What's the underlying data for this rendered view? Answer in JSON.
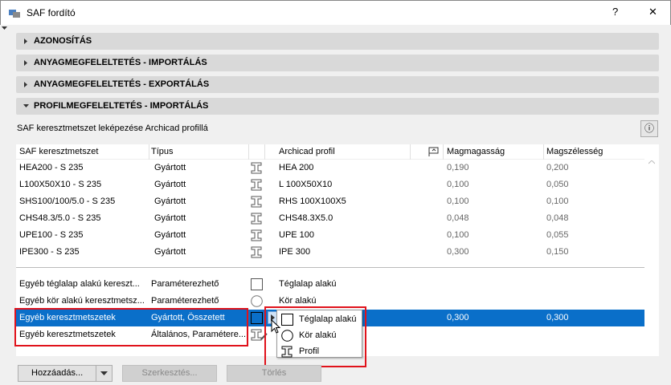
{
  "window": {
    "title": "SAF fordító",
    "help": "?",
    "close": "✕"
  },
  "sections": [
    {
      "label": "AZONOSÍTÁS",
      "expanded": false
    },
    {
      "label": "ANYAGMEGFELELTETÉS - IMPORTÁLÁS",
      "expanded": false
    },
    {
      "label": "ANYAGMEGFELELTETÉS - EXPORTÁLÁS",
      "expanded": false
    },
    {
      "label": "PROFILMEGFELELTETÉS - IMPORTÁLÁS",
      "expanded": true
    }
  ],
  "subtitle": "SAF keresztmetszet leképezése Archicad profillá",
  "columns": {
    "saf": "SAF keresztmetszet",
    "type": "Típus",
    "archicad": "Archicad profil",
    "height": "Magmagasság",
    "width": "Magszélesség"
  },
  "rows": [
    {
      "saf": "HEA200 - S 235",
      "type": "Gyártott",
      "icon": "profile",
      "archicad": "HEA 200",
      "height": "0,190",
      "width": "0,200"
    },
    {
      "saf": "L100X50X10 - S 235",
      "type": "Gyártott",
      "icon": "profile",
      "archicad": "L 100X50X10",
      "height": "0,100",
      "width": "0,050"
    },
    {
      "saf": "SHS100/100/5.0 - S 235",
      "type": "Gyártott",
      "icon": "profile",
      "archicad": "RHS 100X100X5",
      "height": "0,100",
      "width": "0,100"
    },
    {
      "saf": "CHS48.3/5.0 - S 235",
      "type": "Gyártott",
      "icon": "profile",
      "archicad": "CHS48.3X5.0",
      "height": "0,048",
      "width": "0,048"
    },
    {
      "saf": "UPE100 - S 235",
      "type": "Gyártott",
      "icon": "profile",
      "archicad": "UPE 100",
      "height": "0,100",
      "width": "0,055"
    },
    {
      "saf": "IPE300 - S 235",
      "type": "Gyártott",
      "icon": "profile",
      "archicad": "IPE 300",
      "height": "0,300",
      "width": "0,150"
    }
  ],
  "generic_rows": [
    {
      "saf": "Egyéb téglalap alakú kereszt...",
      "type": "Paraméterezhető",
      "icon": "rectangle",
      "archicad": "Téglalap alakú"
    },
    {
      "saf": "Egyéb kör alakú keresztmetsz...",
      "type": "Paraméterezhető",
      "icon": "circle",
      "archicad": "Kör alakú"
    },
    {
      "saf": "Egyéb keresztmetszetek",
      "type": "Gyártott, Összetett",
      "icon": "rectangle",
      "height": "0,300",
      "width": "0,300",
      "selected": true
    },
    {
      "saf": "Egyéb keresztmetszetek",
      "type": "Általános, Paramétere...",
      "icon": "profile-edit"
    }
  ],
  "popup": [
    {
      "label": "Téglalap alakú",
      "icon": "rectangle"
    },
    {
      "label": "Kör alakú",
      "icon": "circle"
    },
    {
      "label": "Profil",
      "icon": "profile"
    }
  ],
  "buttons": {
    "add": "Hozzáadás...",
    "edit": "Szerkesztés...",
    "delete": "Törlés"
  },
  "colors": {
    "selection": "#0a6fc9",
    "highlight": "#e0121b"
  }
}
